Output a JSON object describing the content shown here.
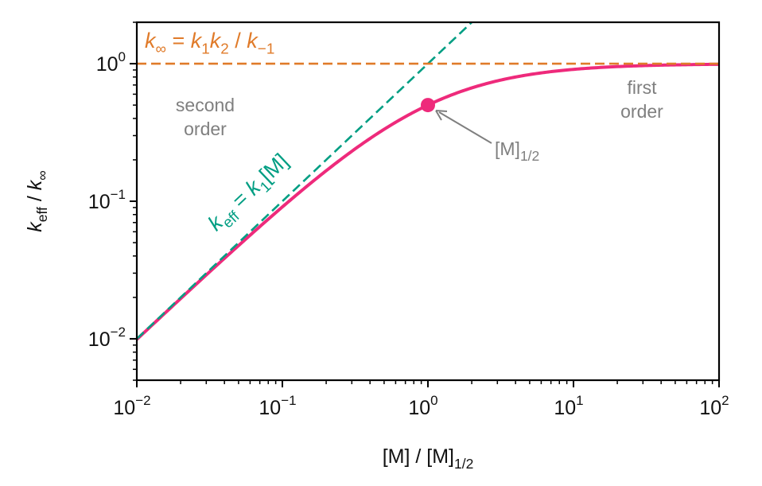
{
  "chart_data": {
    "type": "line",
    "xscale": "log",
    "yscale": "log",
    "xlim": [
      0.01,
      100
    ],
    "ylim": [
      0.005,
      2
    ],
    "grid": false,
    "xlabel": [
      {
        "t": "[M] / [M]",
        "s": "n"
      },
      {
        "t": "1/2",
        "s": "sub"
      }
    ],
    "ylabel": [
      {
        "t": "k",
        "s": "i"
      },
      {
        "t": "eff",
        "s": "sub"
      },
      {
        "t": " / ",
        "s": "n"
      },
      {
        "t": "k",
        "s": "i"
      },
      {
        "t": "∞",
        "s": "sub"
      }
    ],
    "xticks": [
      {
        "value": 0.01,
        "base": "10",
        "exp": "−2"
      },
      {
        "value": 0.1,
        "base": "10",
        "exp": "−1"
      },
      {
        "value": 1,
        "base": "10",
        "exp": "0"
      },
      {
        "value": 10,
        "base": "10",
        "exp": "1"
      },
      {
        "value": 100,
        "base": "10",
        "exp": "2"
      }
    ],
    "yticks": [
      {
        "value": 0.01,
        "base": "10",
        "exp": "−2"
      },
      {
        "value": 0.1,
        "base": "10",
        "exp": "−1"
      },
      {
        "value": 1,
        "base": "10",
        "exp": "0"
      }
    ],
    "series": [
      {
        "id": "k_eff",
        "formula": "x/(1+x)",
        "color": "#ee2a7b",
        "style": "solid",
        "x_range": [
          0.01,
          100
        ]
      },
      {
        "id": "low_pressure_limit",
        "formula": "x",
        "color": "#009e83",
        "style": "dashed",
        "x_range": [
          0.01,
          2
        ]
      },
      {
        "id": "high_pressure_limit",
        "formula": "1",
        "color": "#e07b2a",
        "style": "dashed",
        "x_range": [
          0.01,
          100
        ]
      }
    ],
    "marker": {
      "x": 1,
      "y": 0.5,
      "color": "#ee2a7b"
    },
    "annotations": {
      "k_inf": [
        {
          "t": "k",
          "s": "i"
        },
        {
          "t": "∞",
          "s": "sub"
        },
        {
          "t": " = ",
          "s": "n"
        },
        {
          "t": "k",
          "s": "i"
        },
        {
          "t": "1",
          "s": "sub"
        },
        {
          "t": "k",
          "s": "i"
        },
        {
          "t": "2",
          "s": "sub"
        },
        {
          "t": " / ",
          "s": "n"
        },
        {
          "t": "k",
          "s": "i"
        },
        {
          "t": "−1",
          "s": "sub"
        }
      ],
      "k_eff": [
        {
          "t": "k",
          "s": "i"
        },
        {
          "t": "eff",
          "s": "sub"
        },
        {
          "t": " = ",
          "s": "n"
        },
        {
          "t": "k",
          "s": "i"
        },
        {
          "t": "1",
          "s": "sub"
        },
        {
          "t": "[M]",
          "s": "n"
        }
      ],
      "m_half": [
        {
          "t": "[M]",
          "s": "n"
        },
        {
          "t": "1/2",
          "s": "sub"
        }
      ],
      "second_order": [
        "second",
        "order"
      ],
      "first_order": [
        "first",
        "order"
      ]
    },
    "colors": {
      "k_inf": "#e07b2a",
      "k_eff": "#009e83",
      "curve": "#ee2a7b",
      "annotation": "#7f7f7f"
    }
  }
}
